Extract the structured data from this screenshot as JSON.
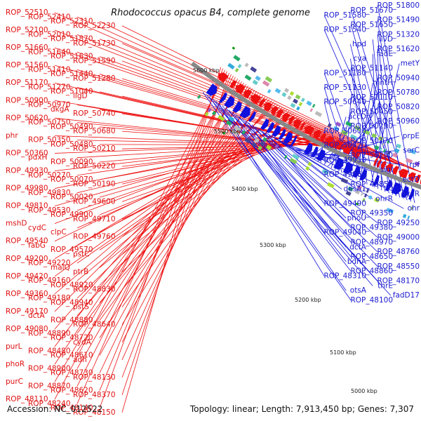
{
  "title": "Rhodococcus opacus B4, complete genome",
  "footer": {
    "accession": "Accession: NC_012522",
    "topology": "Topology: linear; Length: 7,913,450 bp; Genes: 7,307"
  },
  "ticks": [
    "5000 kbp",
    "5100 kbp",
    "5200 kbp",
    "5300 kbp",
    "5400 kbp",
    "5500 kbp",
    "5600 kbp"
  ],
  "colors": {
    "forward": "#ee1111",
    "reverse": "#1111dd",
    "backbone": "#888888",
    "marker": "#119911"
  },
  "left_labels": [
    "ROP_52510",
    "ROP_52410",
    "ROP_52310",
    "ROP_52230",
    "ROP_52100",
    "ROP_52010",
    "ROP_51870",
    "ROP_51730",
    "ROP_51660",
    "ROP_51640",
    "ROP_51630",
    "ROP_51590",
    "ROP_51560",
    "ROP_51410",
    "ROP_51440",
    "ROP_51280",
    "ROP_51170",
    "ROP_51270",
    "ROP_51040",
    "ligD",
    "ROP_50900",
    "ROP_50970",
    "dkgA",
    "ROP_50740",
    "ROP_50620",
    "ROP_50750",
    "ROP_50490",
    "ROP_50680",
    "phr",
    "ROP_50350",
    "ROP_50480",
    "ROP_50210",
    "ROP_50360",
    "pdxH",
    "ROP_50090",
    "ROP_50220",
    "ROP_49930",
    "ROP_50270",
    "ROP_50070",
    "ROP_50190",
    "ROP_49980",
    "ROP_49830",
    "ROP_50020",
    "ROP_49600",
    "ROP_49810",
    "ROP_49530",
    "ROP_49900",
    "ROP_49710",
    "mshD",
    "cydC",
    "clpC",
    "ROP_49760",
    "ROP_49540",
    "fabG",
    "ROP_49570",
    "pstC",
    "ROP_49200",
    "ROP_49220",
    "malQ",
    "ptrB",
    "ROP_49420",
    "ROP_49160",
    "ROP_48920",
    "ROP_48830",
    "ROP_49360",
    "ROP_49180",
    "ROP_48940",
    "pstS",
    "ROP_49170",
    "dctA",
    "ROP_48880",
    "ROP_48640",
    "ROP_49080",
    "ROP_48890",
    "ROP_48720",
    "cydA",
    "purL",
    "ROP_48480",
    "ROP_48610",
    "adh",
    "phoR",
    "ROP_48900",
    "ROP_48730",
    "ROP_48130",
    "purC",
    "ROP_48870",
    "ROP_48620",
    "ROP_48370",
    "ROP_48110",
    "ROP_48240",
    "ROP_48140",
    "ROP_48150"
  ],
  "right_labels": [
    "ROP_51800",
    "ROP_51670",
    "ROP_51580",
    "ROP_51490",
    "ROP_51650",
    "ROP_51540",
    "ROP_51320",
    "ilvD",
    "hpd",
    "ROP_51620",
    "fadE",
    "cya",
    "metY",
    "ROP_51140",
    "ROP_51180",
    "ROP_50940",
    "mntH",
    "ROP_51130",
    "ROP_50780",
    "ROP_51110",
    "ROP_50640",
    "ROP_50820",
    "ROP_50450",
    "accD",
    "ROP_50960",
    "ROP_50290",
    "ROP_50600",
    "prpE",
    "ROP_50170",
    "ROP_50420",
    "serC",
    "ROP_50250",
    "ROP_49950",
    "rpf",
    "sigI",
    "ROP_49860",
    "ectD",
    "ROP_49850",
    "desA1",
    "gyaR",
    "ohrR",
    "ROP_49490",
    "ohr",
    "ROP_49350",
    "phoU",
    "ROP_49250",
    "ROP_49380",
    "ROP_49040",
    "ROP_49000",
    "ROP_48970",
    "dctA",
    "ROP_48760",
    "ROP_48650",
    "bdhA",
    "ROP_48550",
    "ROP_48860",
    "ROP_48310",
    "ROP_48170",
    "thrE",
    "otsA",
    "fadD17",
    "ROP_48100"
  ]
}
